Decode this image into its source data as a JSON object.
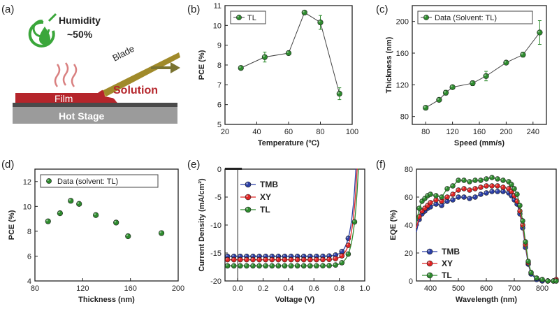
{
  "panels": {
    "a": "(a)",
    "b": "(b)",
    "c": "(c)",
    "d": "(d)",
    "e": "(e)",
    "f": "(f)"
  },
  "schematic": {
    "humidity": "Humidity",
    "humidity_value": "~50%",
    "blade": "Blade",
    "film": "Film",
    "solution": "Solution",
    "stage": "Hot Stage",
    "colors": {
      "film": "#b5252b",
      "blade": "#a08a2a",
      "stage": "#9b9b9b",
      "drop": "#3aa63a",
      "arrow": "#7a7330"
    }
  },
  "chart_data": [
    {
      "id": "b",
      "type": "line",
      "xlabel": "Temperature (ºC)",
      "ylabel": "PCE (%)",
      "xlim": [
        20,
        100
      ],
      "ylim": [
        5,
        11
      ],
      "xticks": [
        20,
        40,
        60,
        80,
        100
      ],
      "yticks": [
        5,
        6,
        7,
        8,
        9,
        10,
        11
      ],
      "series": [
        {
          "name": "TL",
          "color": "#2e8b2e",
          "x": [
            30,
            45,
            60,
            70,
            80,
            92
          ],
          "y": [
            7.85,
            8.4,
            8.6,
            10.65,
            10.15,
            6.55
          ],
          "err": [
            0.1,
            0.25,
            0.05,
            0.1,
            0.35,
            0.3
          ]
        }
      ],
      "legend": "top-left"
    },
    {
      "id": "c",
      "type": "line",
      "xlabel": "Speed (mm/s)",
      "ylabel": "Thickness (nm)",
      "xlim": [
        60,
        260
      ],
      "ylim": [
        70,
        220
      ],
      "xticks": [
        80,
        120,
        160,
        200,
        240
      ],
      "yticks": [
        80,
        120,
        160,
        200
      ],
      "series": [
        {
          "name": "Data (Solvent: TL)",
          "color": "#2e8b2e",
          "x": [
            80,
            100,
            110,
            120,
            150,
            170,
            200,
            225,
            250
          ],
          "y": [
            91,
            101,
            110,
            117,
            122,
            131,
            148,
            158,
            186
          ],
          "err": [
            2,
            2,
            3,
            2,
            3,
            6,
            2,
            3,
            15
          ]
        }
      ],
      "legend": "top-left"
    },
    {
      "id": "d",
      "type": "scatter",
      "xlabel": "Thickness (nm)",
      "ylabel": "PCE (%)",
      "xlim": [
        80,
        200
      ],
      "ylim": [
        4,
        13
      ],
      "xticks": [
        80,
        120,
        160,
        200
      ],
      "yticks": [
        4,
        6,
        8,
        10,
        12
      ],
      "series": [
        {
          "name": "Data (solvent: TL)",
          "color": "#2e8b2e",
          "x": [
            91,
            101,
            110,
            117,
            131,
            148,
            158,
            186
          ],
          "y": [
            8.8,
            9.45,
            10.45,
            10.2,
            9.3,
            8.7,
            7.6,
            7.85
          ]
        }
      ],
      "legend": "top-left"
    },
    {
      "id": "e",
      "type": "line",
      "xlabel": "Voltage (V)",
      "ylabel": "Current Density (mA/cm²)",
      "xlim": [
        -0.1,
        1.0
      ],
      "ylim": [
        -20,
        0
      ],
      "xticks": [
        0.0,
        0.2,
        0.4,
        0.6,
        0.8,
        1.0
      ],
      "xticklabels": [
        "0.0",
        "0.2",
        "0.4",
        "0.6",
        "0.8",
        "1.0"
      ],
      "yticks": [
        -20,
        -15,
        -10,
        -5,
        0
      ],
      "series": [
        {
          "name": "TMB",
          "color": "#2b3fa6",
          "jsc": 15.6,
          "voc": 0.93
        },
        {
          "name": "XY",
          "color": "#e02525",
          "jsc": 16.2,
          "voc": 0.94
        },
        {
          "name": "TL",
          "color": "#2e8b2e",
          "jsc": 17.3,
          "voc": 0.95
        }
      ],
      "legend": "top-left"
    },
    {
      "id": "f",
      "type": "line",
      "xlabel": "Wavelength (nm)",
      "ylabel": "EQE (%)",
      "xlim": [
        350,
        850
      ],
      "ylim": [
        0,
        80
      ],
      "xticks": [
        400,
        500,
        600,
        700,
        800
      ],
      "yticks": [
        0,
        20,
        40,
        60,
        80
      ],
      "x": [
        350,
        360,
        370,
        380,
        390,
        400,
        420,
        440,
        460,
        480,
        500,
        520,
        540,
        560,
        580,
        600,
        620,
        640,
        660,
        680,
        690,
        700,
        710,
        720,
        730,
        740,
        750,
        760,
        780,
        800,
        820,
        840,
        850
      ],
      "series": [
        {
          "name": "TMB",
          "color": "#2b3fa6",
          "y": [
            35,
            44,
            48,
            50,
            52,
            53,
            55,
            54,
            57,
            58,
            60,
            60,
            59,
            60,
            62,
            63,
            64,
            64,
            64,
            63,
            61,
            58,
            55,
            48,
            38,
            24,
            12,
            5,
            1,
            0,
            0,
            0,
            0
          ]
        },
        {
          "name": "XY",
          "color": "#e02525",
          "y": [
            38,
            46,
            50,
            52,
            54,
            56,
            58,
            57,
            60,
            62,
            65,
            66,
            65,
            66,
            67,
            68,
            68,
            68,
            67,
            66,
            64,
            61,
            57,
            50,
            40,
            26,
            13,
            6,
            2,
            1,
            0,
            0,
            1
          ]
        },
        {
          "name": "TL",
          "color": "#2e8b2e",
          "y": [
            42,
            52,
            57,
            59,
            61,
            62,
            61,
            60,
            66,
            68,
            72,
            72,
            71,
            72,
            72,
            73,
            74,
            73,
            72,
            71,
            69,
            66,
            62,
            54,
            43,
            28,
            14,
            6,
            2,
            1,
            0,
            0,
            0
          ]
        }
      ],
      "legend": "bottom-left"
    }
  ]
}
